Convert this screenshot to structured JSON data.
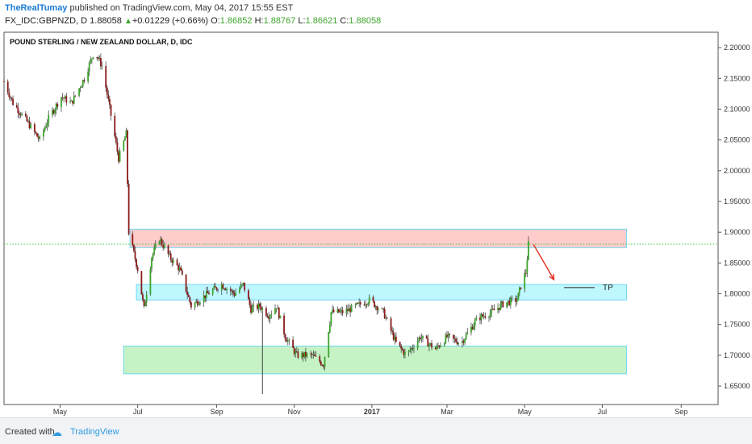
{
  "header": {
    "user": "TheRealTumay",
    "published": " published on TradingView.com, May 04, 2017 15:55 EST",
    "symbol": "FX_IDC:GBPNZD, D",
    "last": "1.88058",
    "arrow": "▲",
    "change": "+0.01229 (+0.66%)",
    "o_label": "O:",
    "o_val": "1.86852",
    "h_label": "H:",
    "h_val": "1.88767",
    "l_label": "L:",
    "l_val": "1.86621",
    "c_label": "C:",
    "c_val": "1.88058"
  },
  "footer": {
    "created": "Created with",
    "logo_icon": "cloud-logo-icon",
    "brand": "TradingView"
  },
  "colors": {
    "up": "#3ca52b",
    "down": "#8b1a1a",
    "wick": "#333333",
    "resistance_zone": "#ff9999",
    "tp_zone": "#7ff0ff",
    "support_zone": "#8de88d",
    "zone_border": "#6fd6f0",
    "price_line": "#44c944",
    "arrow": "#e03020"
  },
  "chart_data": {
    "type": "candlestick",
    "title": "POUND STERLING / NEW ZEALAND DOLLAR, D, IDC",
    "x_ticks": [
      "May",
      "Jul",
      "Sep",
      "Nov",
      "2017",
      "Mar",
      "May",
      "Jul",
      "Sep"
    ],
    "x_tick_dates": [
      "2016-05",
      "2016-07",
      "2016-09",
      "2016-11",
      "2017-01",
      "2017-03",
      "2017-05",
      "2017-07",
      "2017-09"
    ],
    "y_ticks": [
      "2.20000",
      "2.15000",
      "2.10000",
      "2.05000",
      "2.00000",
      "1.95000",
      "1.90000",
      "1.85000",
      "1.80000",
      "1.75000",
      "1.70000",
      "1.65000"
    ],
    "ylim": [
      1.62,
      2.225
    ],
    "xlim": [
      "2016-03-18",
      "2017-09-30"
    ],
    "current_price": 1.88058,
    "key_points": [
      {
        "date": "2016-03-18",
        "price": 2.145
      },
      {
        "date": "2016-03-25",
        "price": 2.11
      },
      {
        "date": "2016-04-05",
        "price": 2.08
      },
      {
        "date": "2016-04-15",
        "price": 2.05
      },
      {
        "date": "2016-04-22",
        "price": 2.085
      },
      {
        "date": "2016-05-02",
        "price": 2.12
      },
      {
        "date": "2016-05-10",
        "price": 2.11
      },
      {
        "date": "2016-05-20",
        "price": 2.15
      },
      {
        "date": "2016-05-28",
        "price": 2.195
      },
      {
        "date": "2016-06-03",
        "price": 2.17
      },
      {
        "date": "2016-06-10",
        "price": 2.09
      },
      {
        "date": "2016-06-16",
        "price": 2.02
      },
      {
        "date": "2016-06-22",
        "price": 2.06
      },
      {
        "date": "2016-06-24",
        "price": 1.9
      },
      {
        "date": "2016-07-01",
        "price": 1.84
      },
      {
        "date": "2016-07-06",
        "price": 1.775
      },
      {
        "date": "2016-07-12",
        "price": 1.86
      },
      {
        "date": "2016-07-18",
        "price": 1.89
      },
      {
        "date": "2016-07-26",
        "price": 1.86
      },
      {
        "date": "2016-08-03",
        "price": 1.84
      },
      {
        "date": "2016-08-12",
        "price": 1.78
      },
      {
        "date": "2016-08-25",
        "price": 1.8
      },
      {
        "date": "2016-09-05",
        "price": 1.815
      },
      {
        "date": "2016-09-15",
        "price": 1.8
      },
      {
        "date": "2016-09-22",
        "price": 1.815
      },
      {
        "date": "2016-09-28",
        "price": 1.775
      },
      {
        "date": "2016-10-05",
        "price": 1.78
      },
      {
        "date": "2016-10-12",
        "price": 1.765
      },
      {
        "date": "2016-10-18",
        "price": 1.78
      },
      {
        "date": "2016-10-25",
        "price": 1.73
      },
      {
        "date": "2016-11-03",
        "price": 1.7
      },
      {
        "date": "2016-11-15",
        "price": 1.7
      },
      {
        "date": "2016-11-24",
        "price": 1.685
      },
      {
        "date": "2016-11-30",
        "price": 1.77
      },
      {
        "date": "2016-12-10",
        "price": 1.77
      },
      {
        "date": "2016-12-20",
        "price": 1.78
      },
      {
        "date": "2016-12-30",
        "price": 1.79
      },
      {
        "date": "2017-01-10",
        "price": 1.77
      },
      {
        "date": "2017-01-20",
        "price": 1.72
      },
      {
        "date": "2017-01-28",
        "price": 1.7
      },
      {
        "date": "2017-02-08",
        "price": 1.73
      },
      {
        "date": "2017-02-20",
        "price": 1.71
      },
      {
        "date": "2017-03-01",
        "price": 1.73
      },
      {
        "date": "2017-03-12",
        "price": 1.72
      },
      {
        "date": "2017-03-25",
        "price": 1.76
      },
      {
        "date": "2017-04-05",
        "price": 1.77
      },
      {
        "date": "2017-04-15",
        "price": 1.785
      },
      {
        "date": "2017-04-25",
        "price": 1.79
      },
      {
        "date": "2017-04-29",
        "price": 1.82
      },
      {
        "date": "2017-05-02",
        "price": 1.835
      },
      {
        "date": "2017-05-04",
        "price": 1.8806
      }
    ],
    "zones": [
      {
        "from": "2016-06-25",
        "to": "2017-07-20",
        "low": 1.875,
        "high": 1.905,
        "color": "resistance"
      },
      {
        "from": "2016-06-30",
        "to": "2017-07-20",
        "low": 1.79,
        "high": 1.815,
        "color": "tp"
      },
      {
        "from": "2016-06-20",
        "to": "2017-07-20",
        "low": 1.67,
        "high": 1.715,
        "color": "support"
      }
    ],
    "arrow": {
      "from_date": "2017-05-08",
      "from_price": 1.88,
      "to_date": "2017-05-24",
      "to_price": 1.823
    },
    "tp_line": {
      "from_date": "2017-06-01",
      "to_date": "2017-06-25",
      "price": 1.81,
      "label": "TP"
    }
  }
}
